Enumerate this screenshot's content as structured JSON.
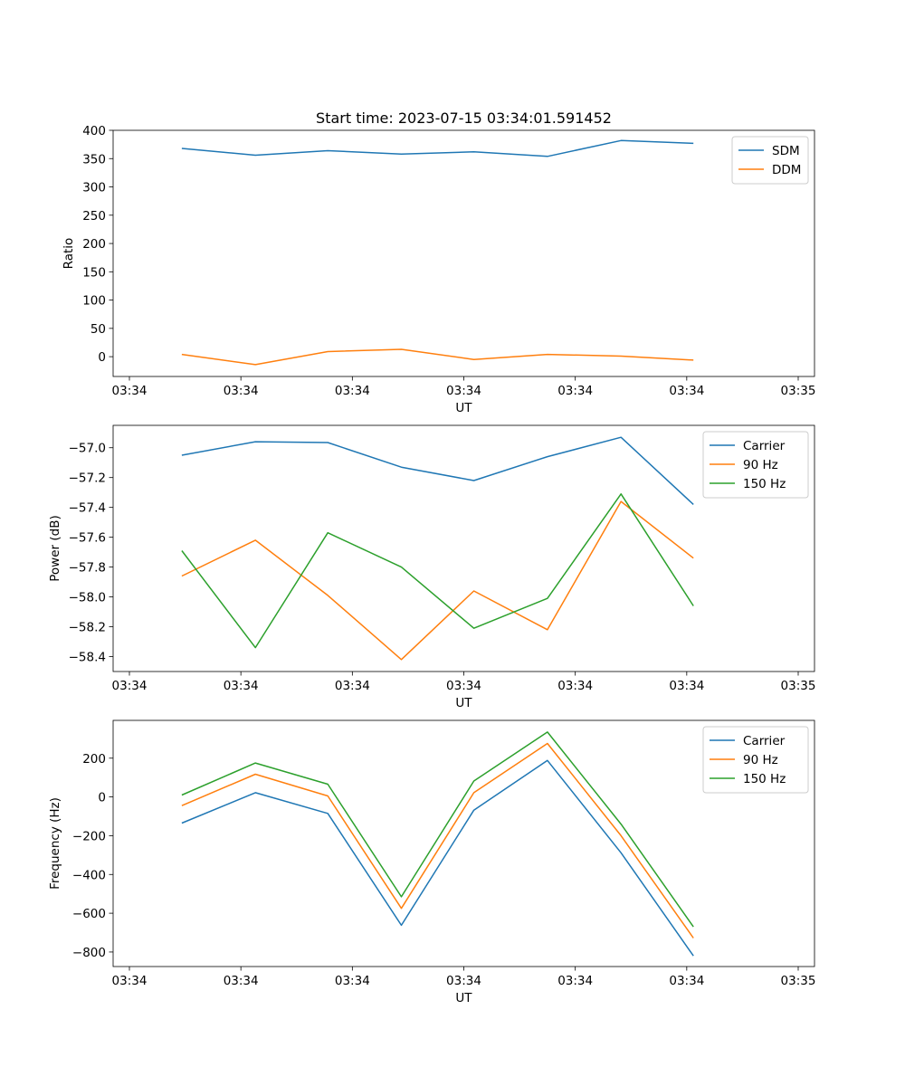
{
  "title": "Start time: 2023-07-15 03:34:01.591452",
  "chart_data": [
    {
      "type": "line",
      "xlabel": "UT",
      "ylabel": "Ratio",
      "xlim": [
        0,
        6
      ],
      "ylim": [
        -35,
        400
      ],
      "xtick_values": [
        0,
        1,
        2,
        3,
        4,
        5,
        6
      ],
      "xtick_labels": [
        "03:34",
        "03:34",
        "03:34",
        "03:34",
        "03:34",
        "03:34",
        "03:35"
      ],
      "ytick_values": [
        0,
        50,
        100,
        150,
        200,
        250,
        300,
        350,
        400
      ],
      "ytick_labels": [
        "0",
        "50",
        "100",
        "150",
        "200",
        "250",
        "300",
        "350",
        "400"
      ],
      "x": [
        0.47,
        1.13,
        1.78,
        2.44,
        3.09,
        3.75,
        4.41,
        5.06
      ],
      "legend_position": "top-right",
      "series": [
        {
          "name": "SDM",
          "color": "#1f77b4",
          "values": [
            368,
            356,
            364,
            358,
            362,
            354,
            382,
            377
          ]
        },
        {
          "name": "DDM",
          "color": "#ff7f0e",
          "values": [
            4,
            -14,
            9,
            13,
            -5,
            4,
            1,
            -6
          ]
        }
      ]
    },
    {
      "type": "line",
      "xlabel": "UT",
      "ylabel": "Power (dB)",
      "xlim": [
        0,
        6
      ],
      "ylim": [
        -58.5,
        -56.85
      ],
      "xtick_values": [
        0,
        1,
        2,
        3,
        4,
        5,
        6
      ],
      "xtick_labels": [
        "03:34",
        "03:34",
        "03:34",
        "03:34",
        "03:34",
        "03:34",
        "03:35"
      ],
      "ytick_values": [
        -58.4,
        -58.2,
        -58.0,
        -57.8,
        -57.6,
        -57.4,
        -57.2,
        -57.0
      ],
      "ytick_labels": [
        "−58.4",
        "−58.2",
        "−58.0",
        "−57.8",
        "−57.6",
        "−57.4",
        "−57.2",
        "−57.0"
      ],
      "x": [
        0.47,
        1.13,
        1.78,
        2.44,
        3.09,
        3.75,
        4.41,
        5.06
      ],
      "legend_position": "top-right",
      "series": [
        {
          "name": "Carrier",
          "color": "#1f77b4",
          "values": [
            -57.05,
            -56.96,
            -56.965,
            -57.13,
            -57.22,
            -57.06,
            -56.93,
            -57.38
          ]
        },
        {
          "name": "90 Hz",
          "color": "#ff7f0e",
          "values": [
            -57.86,
            -57.62,
            -57.99,
            -58.42,
            -57.96,
            -58.22,
            -57.36,
            -57.74
          ]
        },
        {
          "name": "150 Hz",
          "color": "#2ca02c",
          "values": [
            -57.69,
            -58.34,
            -57.57,
            -57.8,
            -58.21,
            -58.01,
            -57.31,
            -58.06
          ]
        }
      ]
    },
    {
      "type": "line",
      "xlabel": "UT",
      "ylabel": "Frequency (Hz)",
      "xlim": [
        0,
        6
      ],
      "ylim": [
        -875,
        395
      ],
      "xtick_values": [
        0,
        1,
        2,
        3,
        4,
        5,
        6
      ],
      "xtick_labels": [
        "03:34",
        "03:34",
        "03:34",
        "03:34",
        "03:34",
        "03:34",
        "03:35"
      ],
      "ytick_values": [
        -800,
        -600,
        -400,
        -200,
        0,
        200
      ],
      "ytick_labels": [
        "−800",
        "−600",
        "−400",
        "−200",
        "0",
        "200"
      ],
      "x": [
        0.47,
        1.13,
        1.78,
        2.44,
        3.09,
        3.75,
        4.41,
        5.06
      ],
      "legend_position": "top-right",
      "series": [
        {
          "name": "Carrier",
          "color": "#1f77b4",
          "values": [
            -135,
            22,
            -85,
            -662,
            -68,
            188,
            -288,
            -820
          ]
        },
        {
          "name": "90 Hz",
          "color": "#ff7f0e",
          "values": [
            -45,
            117,
            5,
            -575,
            22,
            276,
            -200,
            -728
          ]
        },
        {
          "name": "150 Hz",
          "color": "#2ca02c",
          "values": [
            10,
            175,
            66,
            -515,
            82,
            335,
            -140,
            -670
          ]
        }
      ]
    }
  ]
}
